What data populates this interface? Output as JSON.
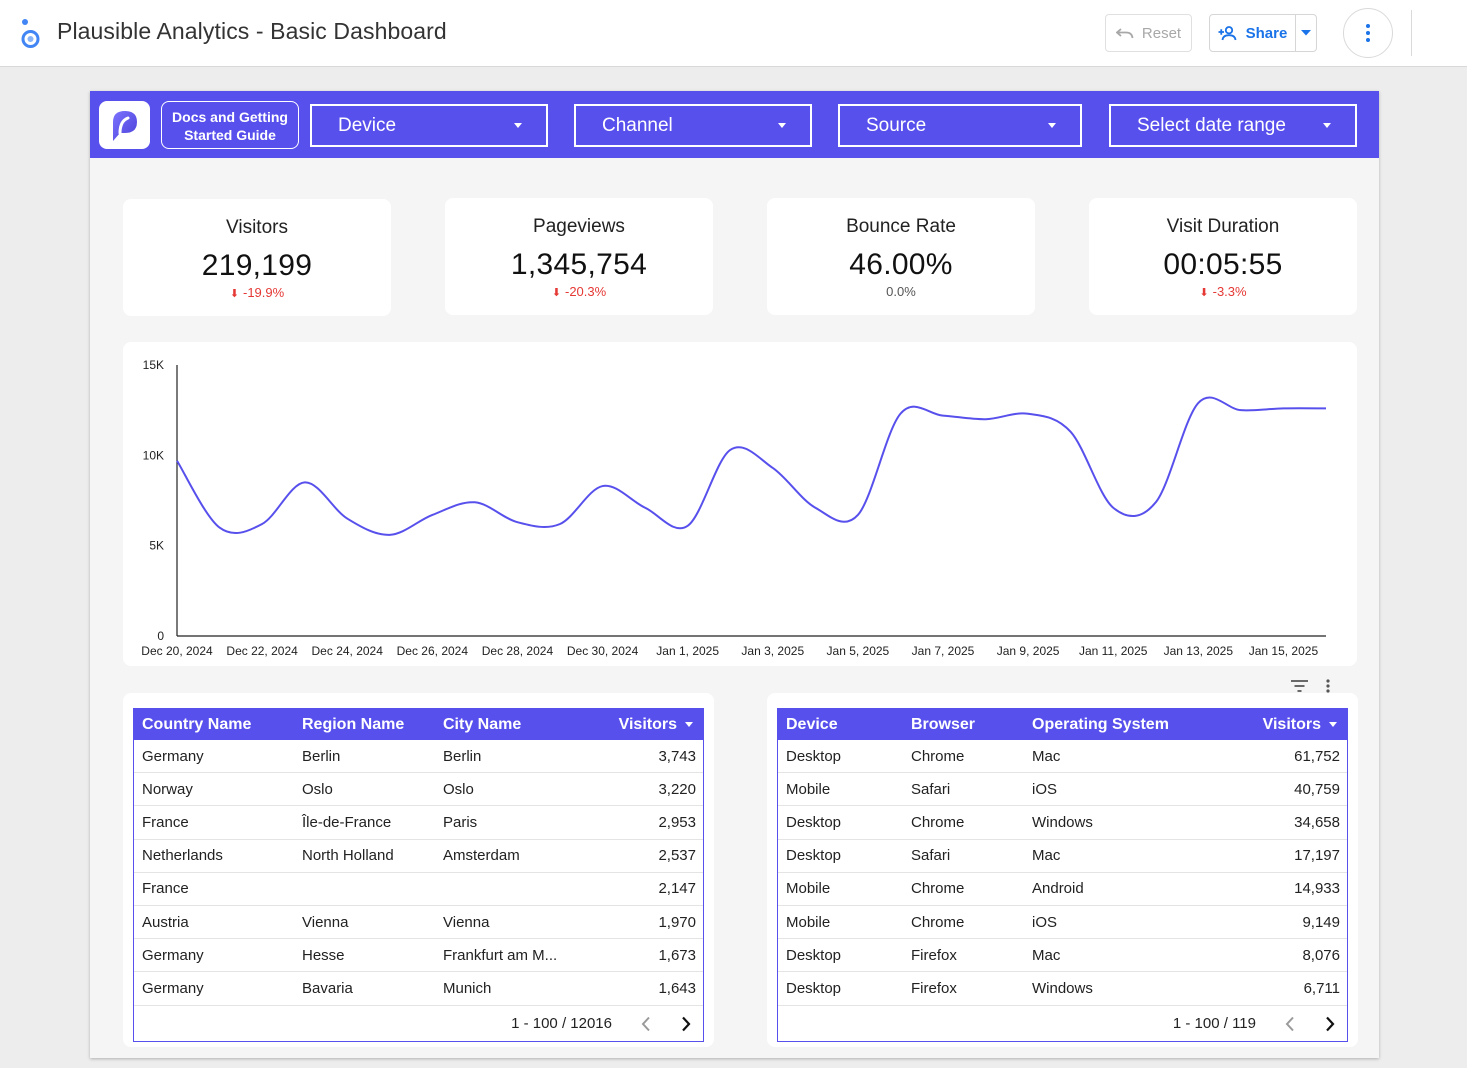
{
  "app": {
    "title": "Plausible Analytics - Basic Dashboard",
    "reset_label": "Reset",
    "share_label": "Share",
    "logo_icon": "looker-studio-logo-icon"
  },
  "filters": {
    "docs_line1": "Docs and Getting",
    "docs_line2": "Started Guide",
    "device": "Device",
    "channel": "Channel",
    "source": "Source",
    "date_range": "Select date range"
  },
  "kpis": [
    {
      "label": "Visitors",
      "value": "219,199",
      "delta": "-19.9%"
    },
    {
      "label": "Pageviews",
      "value": "1,345,754",
      "delta": "-20.3%"
    },
    {
      "label": "Bounce Rate",
      "value": "46.00%",
      "delta": "0.0%"
    },
    {
      "label": "Visit Duration",
      "value": "00:05:55",
      "delta": "-3.3%"
    }
  ],
  "colors": {
    "accent": "#5850ec",
    "negative": "#e53935",
    "link": "#1a73e8"
  },
  "chart_data": {
    "type": "line",
    "x": [
      "Dec 20, 2024",
      "Dec 21, 2024",
      "Dec 22, 2024",
      "Dec 23, 2024",
      "Dec 24, 2024",
      "Dec 25, 2024",
      "Dec 26, 2024",
      "Dec 27, 2024",
      "Dec 28, 2024",
      "Dec 29, 2024",
      "Dec 30, 2024",
      "Dec 31, 2024",
      "Jan 1, 2025",
      "Jan 2, 2025",
      "Jan 3, 2025",
      "Jan 4, 2025",
      "Jan 5, 2025",
      "Jan 6, 2025",
      "Jan 7, 2025",
      "Jan 8, 2025",
      "Jan 9, 2025",
      "Jan 10, 2025",
      "Jan 11, 2025",
      "Jan 12, 2025",
      "Jan 13, 2025",
      "Jan 14, 2025",
      "Jan 15, 2025",
      "Jan 16, 2025"
    ],
    "tick_labels": [
      "Dec 20, 2024",
      "Dec 22, 2024",
      "Dec 24, 2024",
      "Dec 26, 2024",
      "Dec 28, 2024",
      "Dec 30, 2024",
      "Jan 1, 2025",
      "Jan 3, 2025",
      "Jan 5, 2025",
      "Jan 7, 2025",
      "Jan 9, 2025",
      "Jan 11, 2025",
      "Jan 13, 2025",
      "Jan 15, 2025"
    ],
    "values": [
      9700,
      6000,
      6200,
      8500,
      6500,
      5600,
      6700,
      7400,
      6300,
      6200,
      8300,
      7100,
      6100,
      10300,
      9300,
      7100,
      6700,
      12300,
      12200,
      12000,
      12300,
      11300,
      7100,
      7400,
      12900,
      12500,
      12600,
      12600
    ],
    "y_ticks": [
      "0",
      "5K",
      "10K",
      "15K"
    ],
    "ylim": [
      0,
      15000
    ],
    "color": "#5850ec",
    "grid": false
  },
  "geo_table": {
    "headers": [
      "Country Name",
      "Region Name",
      "City Name",
      "Visitors"
    ],
    "rows": [
      [
        "Germany",
        "Berlin",
        "Berlin",
        "3,743"
      ],
      [
        "Norway",
        "Oslo",
        "Oslo",
        "3,220"
      ],
      [
        "France",
        "Île-de-France",
        "Paris",
        "2,953"
      ],
      [
        "Netherlands",
        "North Holland",
        "Amsterdam",
        "2,537"
      ],
      [
        "France",
        "",
        "",
        "2,147"
      ],
      [
        "Austria",
        "Vienna",
        "Vienna",
        "1,970"
      ],
      [
        "Germany",
        "Hesse",
        "Frankfurt am M...",
        "1,673"
      ],
      [
        "Germany",
        "Bavaria",
        "Munich",
        "1,643"
      ]
    ],
    "pagination": "1 - 100 / 12016"
  },
  "device_table": {
    "headers": [
      "Device",
      "Browser",
      "Operating System",
      "Visitors"
    ],
    "rows": [
      [
        "Desktop",
        "Chrome",
        "Mac",
        "61,752"
      ],
      [
        "Mobile",
        "Safari",
        "iOS",
        "40,759"
      ],
      [
        "Desktop",
        "Chrome",
        "Windows",
        "34,658"
      ],
      [
        "Desktop",
        "Safari",
        "Mac",
        "17,197"
      ],
      [
        "Mobile",
        "Chrome",
        "Android",
        "14,933"
      ],
      [
        "Mobile",
        "Chrome",
        "iOS",
        "9,149"
      ],
      [
        "Desktop",
        "Firefox",
        "Mac",
        "8,076"
      ],
      [
        "Desktop",
        "Firefox",
        "Windows",
        "6,711"
      ]
    ],
    "pagination": "1 - 100 / 119"
  }
}
